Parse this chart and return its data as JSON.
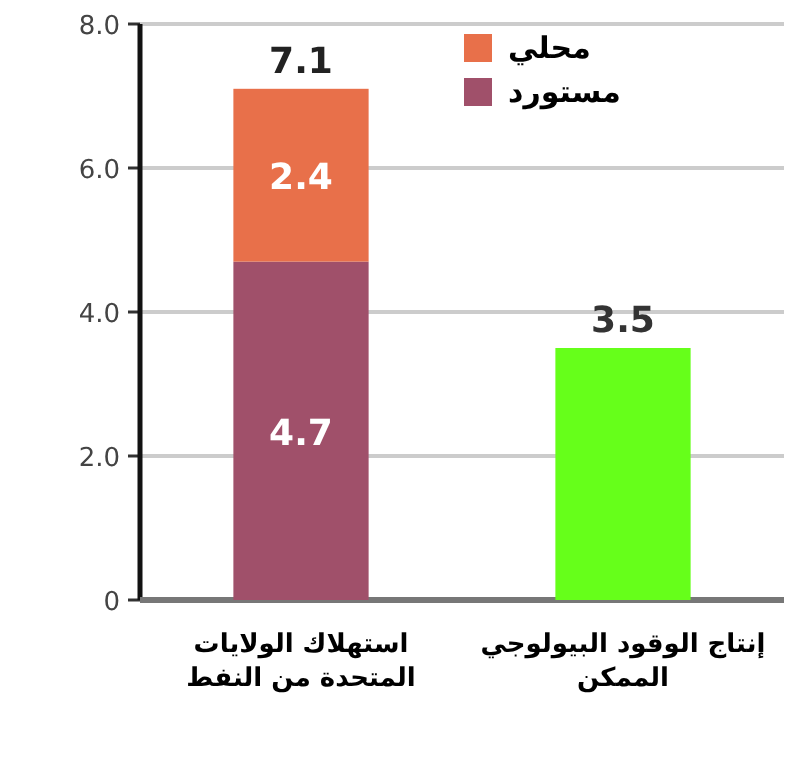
{
  "chart_data": {
    "type": "bar",
    "stacked": true,
    "categories": [
      "استهلاك الولايات المتحدة من النفط",
      "إنتاج الوقود البيولوجي الممكن"
    ],
    "series": [
      {
        "name": "مستورد",
        "color": "#a0506a",
        "values": [
          4.7,
          null
        ]
      },
      {
        "name": "محلي",
        "color": "#e8704a",
        "values": [
          2.4,
          null
        ]
      },
      {
        "color": "#66ff1a",
        "values": [
          null,
          3.5
        ]
      }
    ],
    "ylim": [
      0,
      8
    ],
    "yticks": [
      0,
      {
        "value": 2,
        "label": "2.0"
      },
      {
        "value": 4,
        "label": "4.0"
      },
      {
        "value": 6,
        "label": "6.0"
      },
      {
        "value": 8,
        "label": "8.0"
      }
    ],
    "grid": "y",
    "legend": "top right",
    "data_labels": true,
    "totals": [
      "7.1",
      null
    ]
  }
}
